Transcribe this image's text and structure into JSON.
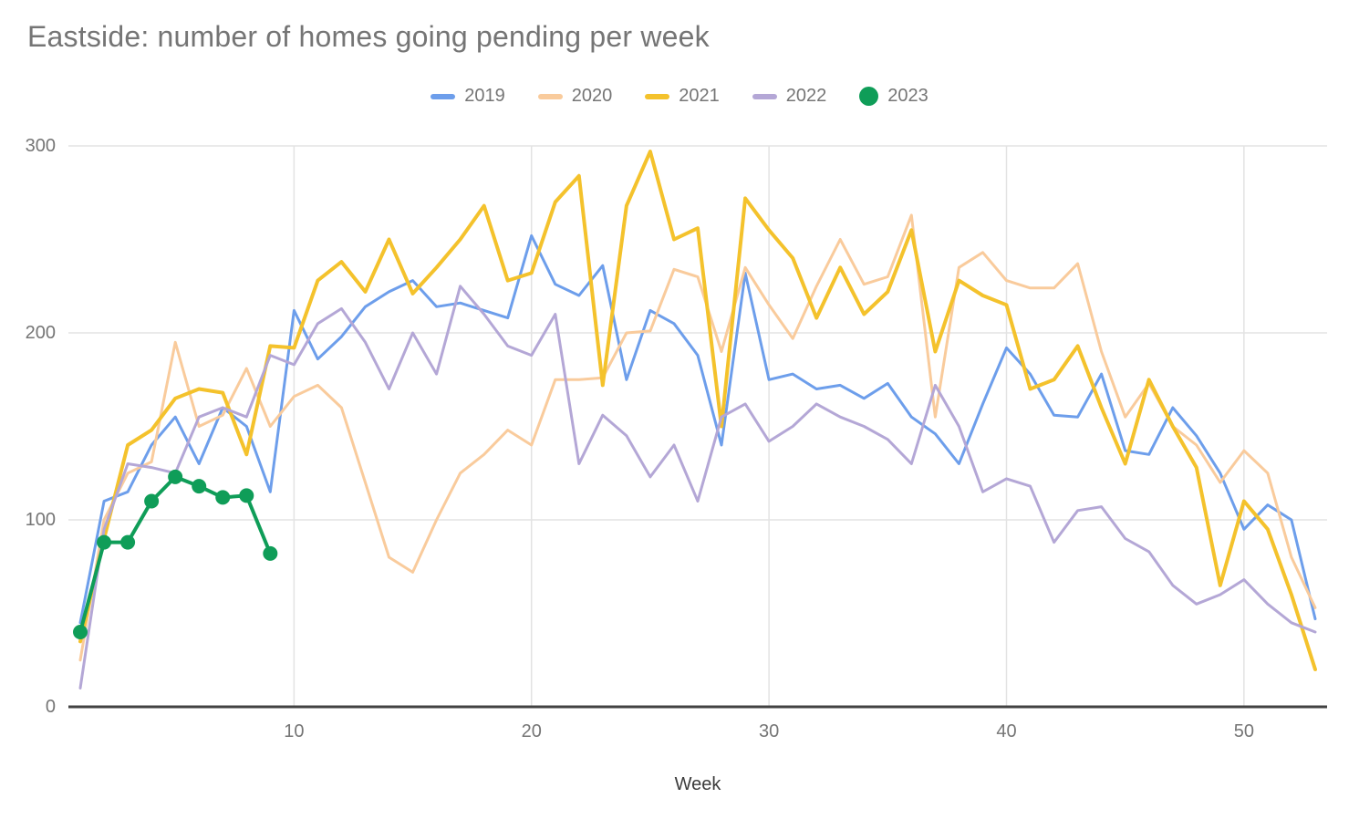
{
  "title": "Eastside: number of homes going pending per week",
  "colors": {
    "background": "#FFFFFF",
    "title_text": "#757575",
    "tick_text": "#757575",
    "axis_title_text": "#3C3C3C",
    "gridline": "#E3E3E3",
    "axis_line": "#424242"
  },
  "chart_data": {
    "type": "line",
    "title": "Eastside: number of homes going pending per week",
    "xlabel": "Week",
    "ylabel": "",
    "legend_position": "top",
    "grid": true,
    "xlim": [
      0.5,
      53.5
    ],
    "ylim": [
      0,
      300
    ],
    "x_ticks": [
      10,
      20,
      30,
      40,
      50
    ],
    "y_ticks": [
      0,
      100,
      200,
      300
    ],
    "x": [
      1,
      2,
      3,
      4,
      5,
      6,
      7,
      8,
      9,
      10,
      11,
      12,
      13,
      14,
      15,
      16,
      17,
      18,
      19,
      20,
      21,
      22,
      23,
      24,
      25,
      26,
      27,
      28,
      29,
      30,
      31,
      32,
      33,
      34,
      35,
      36,
      37,
      38,
      39,
      40,
      41,
      42,
      43,
      44,
      45,
      46,
      47,
      48,
      49,
      50,
      51,
      52,
      53
    ],
    "series": [
      {
        "name": "2019",
        "color": "#6D9EEB",
        "line_width": 3,
        "values": [
          45,
          110,
          115,
          140,
          155,
          130,
          160,
          150,
          115,
          212,
          186,
          198,
          214,
          222,
          228,
          214,
          216,
          212,
          208,
          252,
          226,
          220,
          236,
          175,
          212,
          205,
          188,
          140,
          232,
          175,
          178,
          170,
          172,
          165,
          173,
          155,
          146,
          130,
          162,
          192,
          178,
          156,
          155,
          178,
          137,
          135,
          160,
          145,
          125,
          95,
          108,
          100,
          47
        ]
      },
      {
        "name": "2020",
        "color": "#F9CB9C",
        "line_width": 3,
        "values": [
          25,
          100,
          125,
          131,
          195,
          150,
          156,
          181,
          150,
          166,
          172,
          160,
          120,
          80,
          72,
          100,
          125,
          135,
          148,
          140,
          175,
          175,
          176,
          200,
          201,
          234,
          230,
          190,
          235,
          215,
          197,
          225,
          250,
          226,
          230,
          263,
          155,
          235,
          243,
          228,
          224,
          224,
          237,
          190,
          155,
          173,
          150,
          140,
          120,
          137,
          125,
          80,
          53
        ]
      },
      {
        "name": "2021",
        "color": "#F4C22C",
        "line_width": 4,
        "values": [
          35,
          90,
          140,
          148,
          165,
          170,
          168,
          135,
          193,
          192,
          228,
          238,
          222,
          250,
          221,
          235,
          250,
          268,
          228,
          232,
          270,
          284,
          172,
          268,
          297,
          250,
          256,
          150,
          272,
          255,
          240,
          208,
          235,
          210,
          222,
          255,
          190,
          228,
          220,
          215,
          170,
          175,
          193,
          160,
          130,
          175,
          150,
          128,
          65,
          110,
          95,
          60,
          20
        ]
      },
      {
        "name": "2022",
        "color": "#B4A7D6",
        "line_width": 3,
        "values": [
          10,
          95,
          130,
          128,
          125,
          155,
          160,
          155,
          188,
          183,
          205,
          213,
          195,
          170,
          200,
          178,
          225,
          210,
          193,
          188,
          210,
          130,
          156,
          145,
          123,
          140,
          110,
          155,
          162,
          142,
          150,
          162,
          155,
          150,
          143,
          130,
          172,
          150,
          115,
          122,
          118,
          88,
          105,
          107,
          90,
          83,
          65,
          55,
          60,
          68,
          55,
          45,
          40
        ]
      },
      {
        "name": "2023",
        "color": "#0F9D58",
        "line_width": 4,
        "marker": "circle",
        "marker_radius": 8,
        "values": [
          40,
          88,
          88,
          110,
          123,
          118,
          112,
          113,
          82
        ]
      }
    ]
  }
}
